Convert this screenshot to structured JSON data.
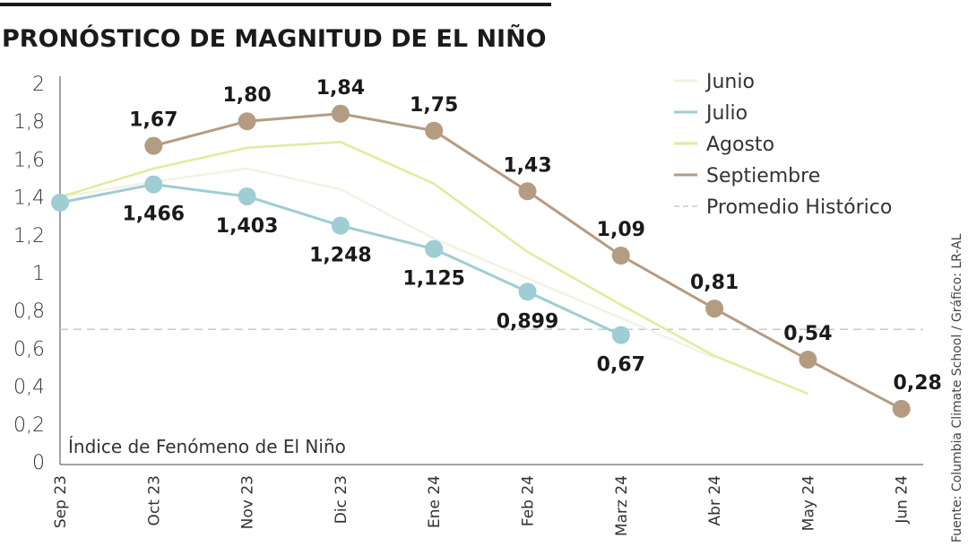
{
  "chart_data": {
    "type": "line",
    "title": "PRONÓSTICO DE MAGNITUD DE EL NIÑO",
    "ylabel": "Índice de Fenómeno de El Niño",
    "source": "Fuente: Columbia Climate School / Gráfico: LR-AL",
    "categories": [
      "Sep 23",
      "Oct 23",
      "Nov 23",
      "Dic 23",
      "Ene 24",
      "Feb 24",
      "Marz 24",
      "Abr 24",
      "May 24",
      "Jun 24"
    ],
    "ylim": [
      0,
      2
    ],
    "yticks": [
      "0",
      "0,2",
      "0,4",
      "0,6",
      "0,8",
      "1",
      "1,2",
      "1,4",
      "1,6",
      "1,8",
      "2"
    ],
    "ytick_values": [
      0,
      0.2,
      0.4,
      0.6,
      0.8,
      1,
      1.2,
      1.4,
      1.6,
      1.8,
      2
    ],
    "grid": false,
    "legend_position": "top-right",
    "series": [
      {
        "name": "Junio",
        "color": "#f1f3e3",
        "markers": false,
        "values": [
          1.4,
          1.48,
          1.55,
          1.44,
          1.18,
          0.97,
          0.76,
          0.55,
          null,
          null
        ],
        "labels": []
      },
      {
        "name": "Julio",
        "color": "#9ecdd3",
        "markers": true,
        "values": [
          1.37,
          1.466,
          1.403,
          1.248,
          1.125,
          0.899,
          0.67,
          null,
          null,
          null
        ],
        "labels": [
          null,
          "1,466",
          "1,403",
          "1,248",
          "1,125",
          "0,899",
          "0,67",
          null,
          null,
          null
        ]
      },
      {
        "name": "Agosto",
        "color": "#e4ea9b",
        "markers": false,
        "values": [
          1.4,
          1.55,
          1.66,
          1.69,
          1.47,
          1.11,
          0.83,
          0.56,
          0.36,
          null
        ],
        "labels": []
      },
      {
        "name": "Septiembre",
        "color": "#b49c83",
        "markers": true,
        "values": [
          null,
          1.67,
          1.8,
          1.84,
          1.75,
          1.43,
          1.09,
          0.81,
          0.54,
          0.28
        ],
        "labels": [
          null,
          "1,67",
          "1,80",
          "1,84",
          "1,75",
          "1,43",
          "1,09",
          "0,81",
          "0,54",
          "0,28"
        ]
      }
    ],
    "reference_line": {
      "name": "Promedio Histórico",
      "value": 0.7,
      "color": "#c8c8cc",
      "style": "dashed"
    }
  }
}
